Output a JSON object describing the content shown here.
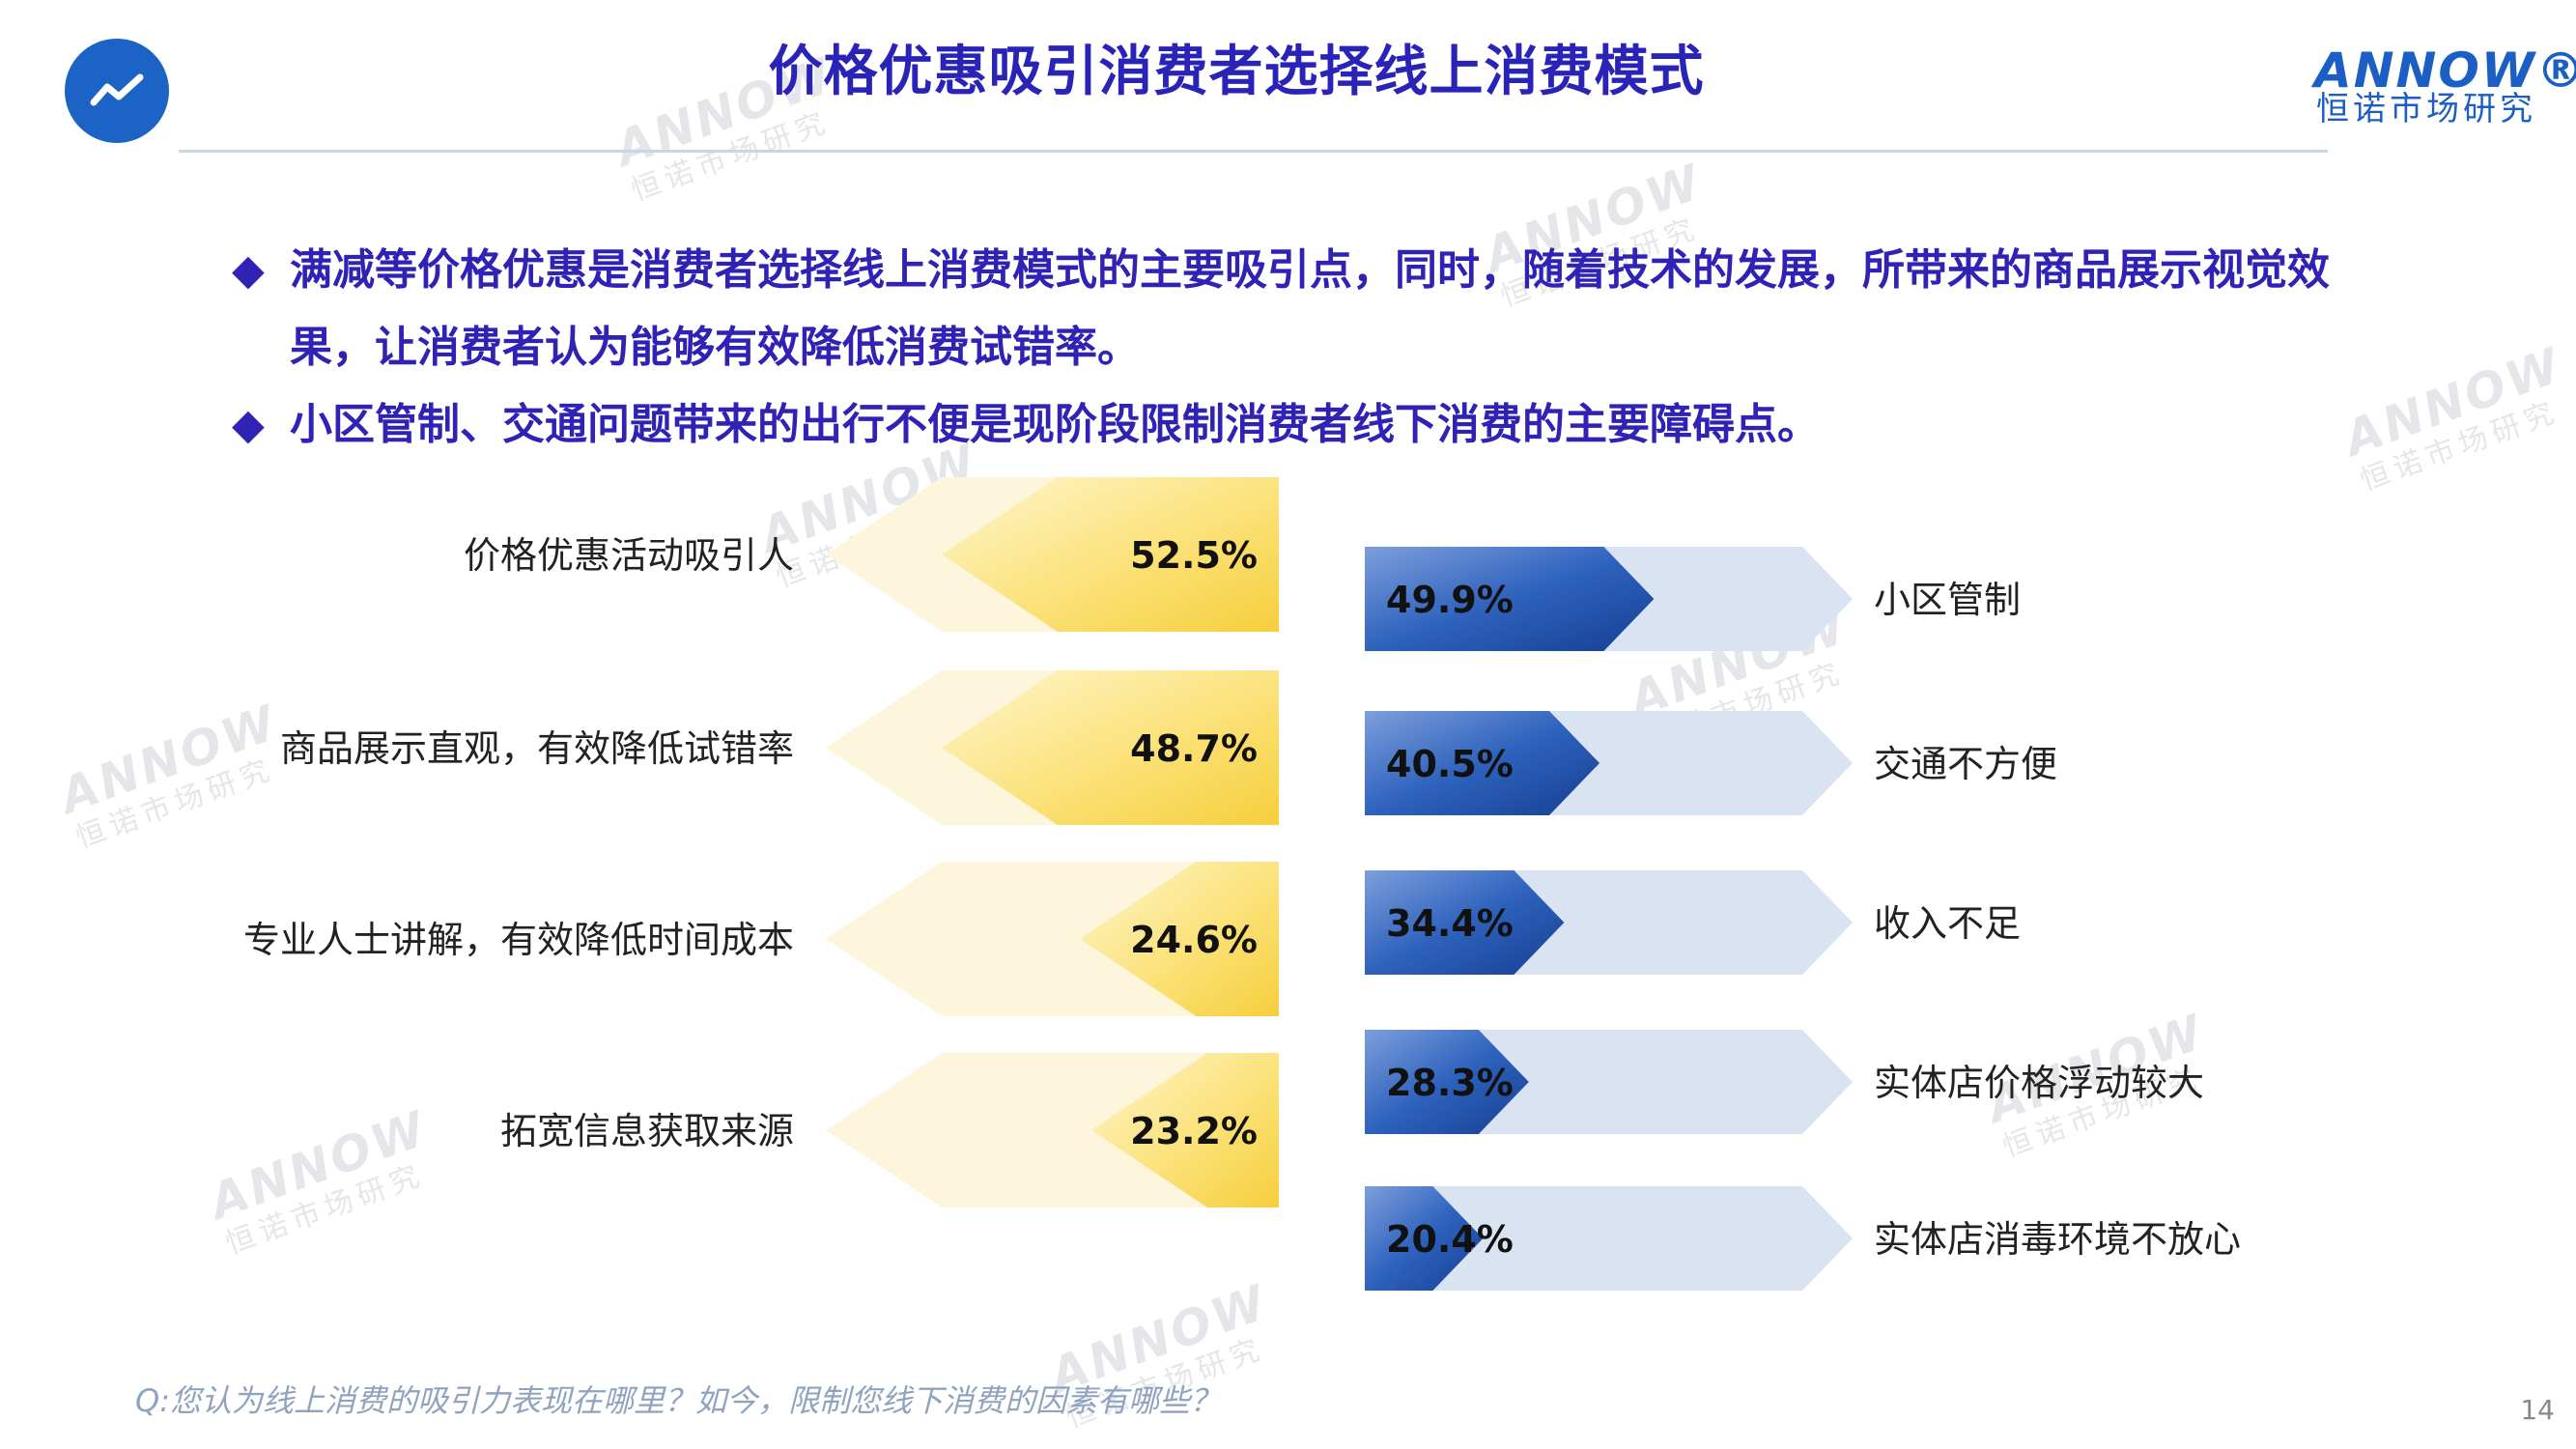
{
  "header": {
    "title": "价格优惠吸引消费者选择线上消费模式",
    "brand_en": "ANNOW®",
    "brand_cn": "恒诺市场研究",
    "logo_icon": "trend-line-icon"
  },
  "bullets": [
    {
      "icon": "diamond-bullet-icon",
      "text": "满减等价格优惠是消费者选择线上消费模式的主要吸引点，同时，随着技术的发展，所带来的商品展示视觉效果，让消费者认为能够有效降低消费试错率。"
    },
    {
      "icon": "diamond-bullet-icon",
      "text": "小区管制、交通问题带来的出行不便是现阶段限制消费者线下消费的主要障碍点。"
    }
  ],
  "chart_data": [
    {
      "type": "bar",
      "orientation": "horizontal",
      "direction": "right-to-left",
      "categories": [
        "价格优惠活动吸引人",
        "商品展示直观，有效降低试错率",
        "专业人士讲解，有效降低时间成本",
        "拓宽信息获取来源"
      ],
      "values": [
        52.5,
        48.7,
        24.6,
        23.2
      ],
      "labels": [
        "52.5%",
        "48.7%",
        "24.6%",
        "23.2%"
      ],
      "unit": "%",
      "xlim": [
        0,
        100
      ],
      "colors": {
        "bar": "#f7d54a",
        "bar_light": "#fff3c4",
        "track": "#fdf5dc"
      }
    },
    {
      "type": "bar",
      "orientation": "horizontal",
      "direction": "left-to-right",
      "categories": [
        "小区管制",
        "交通不方便",
        "收入不足",
        "实体店价格浮动较大",
        "实体店消毒环境不放心"
      ],
      "values": [
        49.9,
        40.5,
        34.4,
        28.3,
        20.4
      ],
      "labels": [
        "49.9%",
        "40.5%",
        "34.4%",
        "28.3%",
        "20.4%"
      ],
      "unit": "%",
      "xlim": [
        0,
        100
      ],
      "colors": {
        "bar": "#1f52b0",
        "bar_light": "#6f96d8",
        "track": "#d9e3f1"
      }
    }
  ],
  "footnote": "Q:您认为线上消费的吸引力表现在哪里？如今，限制您线下消费的因素有哪些？",
  "page_number": "14",
  "watermark": {
    "en": "ANNOW",
    "cn": "恒诺市场研究"
  }
}
